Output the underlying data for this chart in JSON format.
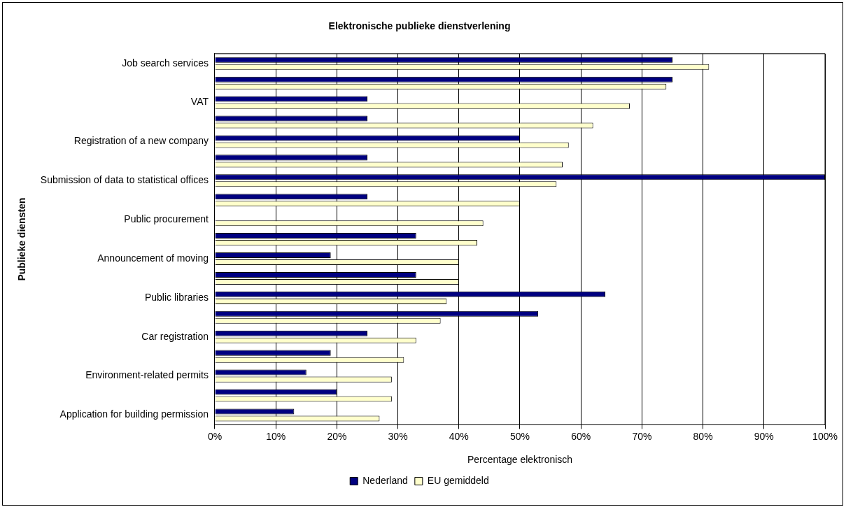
{
  "chart_data": {
    "type": "bar",
    "orientation": "horizontal",
    "title": "Elektronische publieke dienstverlening",
    "xlabel": "Percentage elektronisch",
    "ylabel": "Publieke diensten",
    "categories": [
      "Job search services",
      null,
      "VAT",
      null,
      "Registration of a new company",
      null,
      "Submission of data to statistical offices",
      null,
      "Public procurement",
      null,
      "Announcement of moving",
      null,
      "Public libraries",
      null,
      "Car registration",
      null,
      "Environment-related permits",
      null,
      "Application for building permission"
    ],
    "series": [
      {
        "name": "Nederland",
        "color": "#000080",
        "values": [
          75,
          75,
          25,
          25,
          50,
          25,
          100,
          25,
          null,
          33,
          19,
          33,
          64,
          53,
          25,
          19,
          15,
          20,
          13
        ]
      },
      {
        "name": "EU gemiddeld",
        "color": "#ffffcc",
        "values": [
          81,
          74,
          68,
          62,
          58,
          57,
          56,
          50,
          44,
          43,
          40,
          40,
          38,
          37,
          33,
          31,
          29,
          29,
          27
        ]
      }
    ],
    "xlim": [
      0,
      100
    ],
    "xticks": [
      {
        "value": 0,
        "label": "0%"
      },
      {
        "value": 10,
        "label": "10%"
      },
      {
        "value": 20,
        "label": "20%"
      },
      {
        "value": 30,
        "label": "30%"
      },
      {
        "value": 40,
        "label": "40%"
      },
      {
        "value": 50,
        "label": "50%"
      },
      {
        "value": 60,
        "label": "60%"
      },
      {
        "value": 70,
        "label": "70%"
      },
      {
        "value": 80,
        "label": "80%"
      },
      {
        "value": 90,
        "label": "90%"
      },
      {
        "value": 100,
        "label": "100%"
      }
    ],
    "grid": "x",
    "legend": "bottom"
  }
}
